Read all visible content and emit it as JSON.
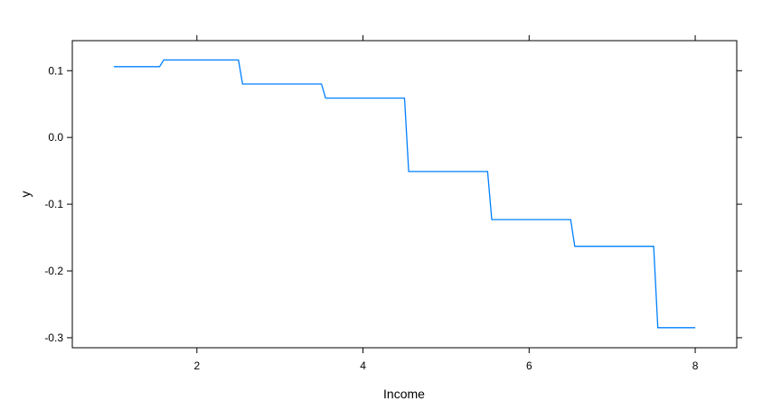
{
  "chart_data": {
    "type": "line",
    "title": "",
    "xlabel": "Income",
    "ylabel": "y",
    "xlim": [
      0.5,
      8.5
    ],
    "ylim": [
      -0.315,
      0.145
    ],
    "x_ticks": [
      2,
      4,
      6,
      8
    ],
    "x_tick_labels": [
      "2",
      "4",
      "6",
      "8"
    ],
    "y_ticks": [
      0.1,
      0.0,
      -0.1,
      -0.2,
      -0.3
    ],
    "y_tick_labels": [
      "0.1",
      "0.0",
      "-0.1",
      "-0.2",
      "-0.3"
    ],
    "grid": false,
    "legend": "none",
    "line_color": "#0080ff",
    "series": [
      {
        "x": [
          1.0,
          1.55,
          1.6,
          2.5,
          2.55,
          3.5,
          3.55,
          4.5,
          4.55,
          5.5,
          5.55,
          6.5,
          6.55,
          7.5,
          7.55,
          8.0
        ],
        "y": [
          0.106,
          0.106,
          0.116,
          0.116,
          0.08,
          0.08,
          0.059,
          0.059,
          -0.051,
          -0.051,
          -0.123,
          -0.123,
          -0.163,
          -0.163,
          -0.285,
          -0.285
        ]
      }
    ]
  }
}
